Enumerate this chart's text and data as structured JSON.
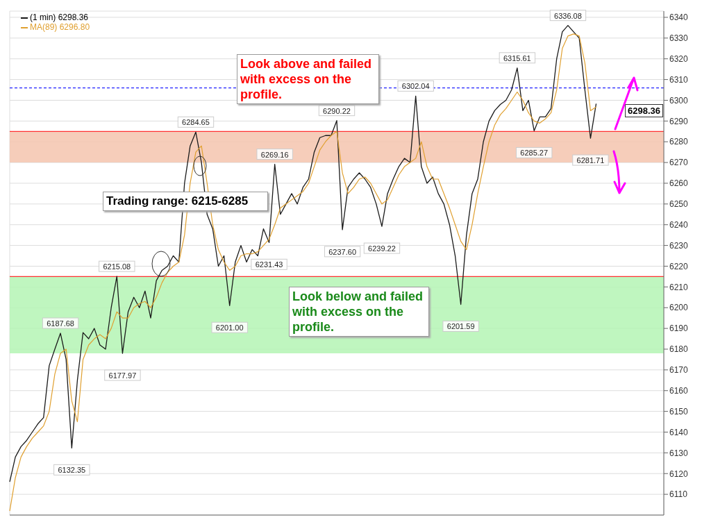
{
  "chart_data": {
    "type": "line",
    "categories": [
      null,
      null,
      null,
      null,
      null,
      null,
      null,
      null,
      null,
      null,
      null,
      null,
      null,
      null,
      null,
      null,
      null,
      null,
      null,
      null,
      null,
      null,
      null,
      null,
      null,
      null,
      null,
      null,
      null,
      null,
      null,
      null,
      null,
      null,
      null,
      null,
      null,
      null,
      null,
      null,
      null,
      null,
      null,
      null,
      null,
      null,
      null,
      null,
      null,
      null,
      null,
      null,
      null,
      null,
      null,
      null,
      null,
      null,
      null,
      null,
      null,
      null,
      null,
      null,
      null,
      null,
      null,
      null,
      null,
      null,
      null,
      null,
      null,
      null,
      null,
      null,
      null,
      null,
      null,
      null,
      null,
      null,
      null,
      null,
      null,
      null,
      null,
      null,
      null,
      null,
      null,
      null,
      null,
      null,
      null,
      null,
      null,
      null,
      null,
      null,
      null,
      null,
      null,
      null,
      null,
      null,
      null,
      null,
      null,
      null,
      null,
      null,
      null,
      null,
      null,
      null,
      null
    ],
    "series": [
      {
        "name": "(1 min) 6298.36",
        "color": "#1a1a1a",
        "values": [
          6116,
          6128,
          6133,
          6136,
          6140,
          6144,
          6147,
          6172,
          6180,
          6187.68,
          6175,
          6132.35,
          6165,
          6188,
          6185,
          6190,
          6182,
          6180,
          6200,
          6215.08,
          6177.97,
          6198,
          6205,
          6200,
          6208,
          6195,
          6213,
          6218,
          6220,
          6225,
          6222,
          6260,
          6278,
          6284.65,
          6270,
          6245,
          6238,
          6220,
          6225,
          6201.0,
          6222,
          6230,
          6222,
          6228,
          6225,
          6238,
          6231.43,
          6269.16,
          6245,
          6250,
          6255,
          6250,
          6258,
          6262,
          6275,
          6282,
          6283,
          6283,
          6290.22,
          6237.6,
          6258,
          6262,
          6265,
          6262,
          6258,
          6250,
          6239.22,
          6255,
          6262,
          6268,
          6272,
          6270,
          6302.04,
          6268,
          6260,
          6263,
          6255,
          6250,
          6240,
          6225,
          6201.59,
          6235,
          6255,
          6262,
          6280,
          6290,
          6295,
          6298,
          6300,
          6305,
          6315.61,
          6295,
          6300,
          6285.27,
          6292,
          6292,
          6296,
          6320,
          6333,
          6336.08,
          6333,
          6330,
          6305,
          6281.71,
          6298.36,
          null,
          null,
          null,
          null,
          null,
          null,
          null,
          null,
          null,
          null,
          null,
          null
        ]
      },
      {
        "name": "MA(89) 6296.80",
        "color": "#e0a030",
        "values": [
          6102,
          6118,
          6128,
          6133,
          6137,
          6140,
          6143,
          6150,
          6168,
          6178,
          6180,
          6155,
          6145,
          6175,
          6182,
          6185,
          6187,
          6185,
          6190,
          6198,
          6195,
          6195,
          6200,
          6202,
          6203,
          6200,
          6205,
          6212,
          6217,
          6220,
          6222,
          6235,
          6260,
          6275,
          6278,
          6260,
          6240,
          6228,
          6222,
          6218,
          6220,
          6225,
          6226,
          6226,
          6227,
          6230,
          6233,
          6240,
          6248,
          6250,
          6252,
          6254,
          6256,
          6260,
          6268,
          6276,
          6280,
          6283,
          6285,
          6265,
          6255,
          6258,
          6262,
          6263,
          6260,
          6255,
          6250,
          6252,
          6258,
          6264,
          6268,
          6270,
          6272,
          6280,
          6268,
          6262,
          6262,
          6255,
          6248,
          6240,
          6232,
          6228,
          6240,
          6255,
          6268,
          6280,
          6288,
          6293,
          6296,
          6300,
          6304,
          6300,
          6294,
          6290,
          6289,
          6291,
          6294,
          6305,
          6325,
          6331,
          6332,
          6331,
          6318,
          6295,
          6296.8,
          null,
          null,
          null,
          null,
          null,
          null,
          null,
          null,
          null,
          null,
          null,
          null
        ]
      }
    ],
    "ylim": [
      6100,
      6343
    ],
    "yticks": [
      6110,
      6120,
      6130,
      6140,
      6150,
      6160,
      6170,
      6180,
      6190,
      6200,
      6210,
      6220,
      6230,
      6240,
      6250,
      6260,
      6270,
      6280,
      6290,
      6300,
      6310,
      6320,
      6330,
      6340
    ],
    "tick_labels": "y",
    "grid": true,
    "legend": "top left",
    "marker": "none",
    "line_style": "solid",
    "ref_lines": [
      {
        "axis": "y",
        "value": 6285,
        "color": "#ff3030"
      },
      {
        "axis": "y",
        "value": 6215,
        "color": "#ff3030"
      },
      {
        "axis": "y",
        "value": 6306,
        "color": "#2020ff",
        "line_style": "dashed"
      }
    ],
    "bands": [
      {
        "axis": "y",
        "from": 6270,
        "to": 6285,
        "color": "#f4c4ae"
      },
      {
        "axis": "y",
        "from": 6178,
        "to": 6215,
        "color": "#b4f5b4"
      }
    ],
    "annotations": [
      "Look above and failed with excess on the profile.",
      "Trading range: 6215-6285",
      "Look below and failed with excess on the profile.",
      {
        "text": "6187.68",
        "y": 6187.68
      },
      {
        "text": "6132.35",
        "y": 6132.35
      },
      {
        "text": "6215.08",
        "y": 6215.08
      },
      {
        "text": "6177.97",
        "y": 6177.97
      },
      {
        "text": "6284.65",
        "y": 6284.65
      },
      {
        "text": "6201.00",
        "y": 6201.0
      },
      {
        "text": "6231.43",
        "y": 6231.43
      },
      {
        "text": "6269.16",
        "y": 6269.16
      },
      {
        "text": "6290.22",
        "y": 6290.22
      },
      {
        "text": "6237.60",
        "y": 6237.6
      },
      {
        "text": "6239.22",
        "y": 6239.22
      },
      {
        "text": "6302.04",
        "y": 6302.04
      },
      {
        "text": "6201.59",
        "y": 6201.59
      },
      {
        "text": "6315.61",
        "y": 6315.61
      },
      {
        "text": "6285.27",
        "y": 6285.27
      },
      {
        "text": "6336.08",
        "y": 6336.08
      },
      {
        "text": "6281.71",
        "y": 6281.71
      },
      "6298.36"
    ]
  }
}
